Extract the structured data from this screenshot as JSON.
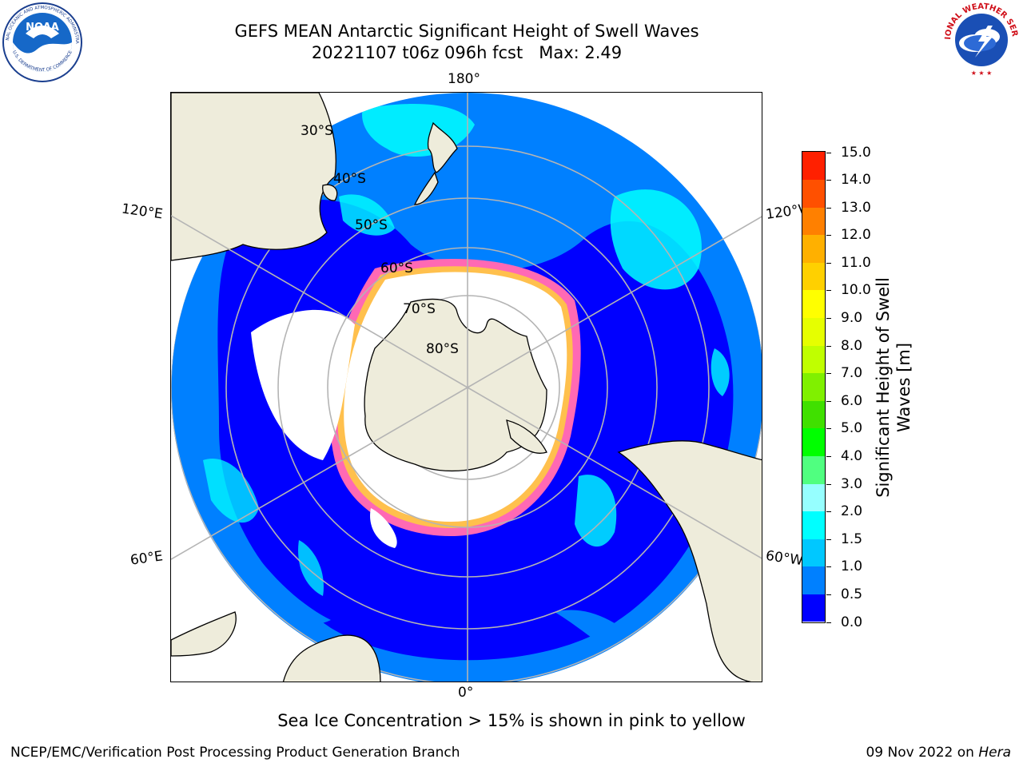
{
  "header": {
    "title_line1": "GEFS MEAN Antarctic Significant Height of Swell Waves",
    "title_line2": "20221107 t06z 096h fcst   Max: 2.49"
  },
  "logos": {
    "left": {
      "name": "NOAA",
      "ring_text": "NATIONAL OCEANIC AND ATMOSPHERIC ADMINISTRATION",
      "bottom_text": "U.S. DEPARTMENT OF COMMERCE"
    },
    "right": {
      "ring_text": "NATIONAL WEATHER SERVICE"
    }
  },
  "map": {
    "longitude_labels": {
      "top": "180°",
      "bottom": "0°",
      "upper_left": "120°E",
      "upper_right": "120°W",
      "lower_left": "60°E",
      "lower_right": "60°W"
    },
    "latitude_labels": [
      "30°S",
      "40°S",
      "50°S",
      "60°S",
      "70°S",
      "80°S"
    ],
    "colors": {
      "land": "#eeecdb",
      "ice_sheet": "#ffffff",
      "ocean_low": "#0000ff",
      "ocean_mid": "#0080ff",
      "ocean_high": "#00ffff",
      "sea_ice_edge": "#ff69b4",
      "sea_ice_edge2": "#ffc04d",
      "grid": "#b4b4b4"
    }
  },
  "colorbar": {
    "title_line1": "Significant Height of Swell",
    "title_line2": "Waves [m]",
    "ticks": [
      "0.0",
      "0.5",
      "1.0",
      "1.5",
      "2.0",
      "3.0",
      "4.0",
      "5.0",
      "6.0",
      "7.0",
      "8.0",
      "9.0",
      "10.0",
      "11.0",
      "12.0",
      "13.0",
      "14.0",
      "15.0"
    ],
    "colors": [
      "#0000ff",
      "#0080ff",
      "#00c8ff",
      "#00ffff",
      "#96ffff",
      "#50ff80",
      "#00ff00",
      "#40e000",
      "#80f000",
      "#c0ff00",
      "#e6ff00",
      "#ffff00",
      "#ffd000",
      "#ffb000",
      "#ff8000",
      "#ff5000",
      "#ff2000"
    ]
  },
  "subtitle": "Sea Ice Concentration > 15% is shown in pink to yellow",
  "footer": {
    "left": "NCEP/EMC/Verification Post Processing Product Generation Branch",
    "right_prefix": "09 Nov 2022 on ",
    "right_host": "Hera"
  }
}
